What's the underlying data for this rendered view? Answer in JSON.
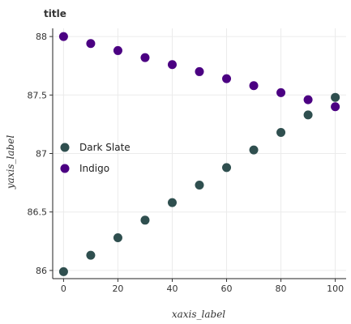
{
  "chart_data": {
    "type": "scatter",
    "title": "title",
    "xlabel": "xaxis_label",
    "ylabel": "yaxis_label",
    "xlim": [
      -4,
      104
    ],
    "ylim": [
      85.93,
      88.07
    ],
    "x_ticks": [
      0,
      20,
      40,
      60,
      80,
      100
    ],
    "y_ticks": [
      86,
      86.5,
      87,
      87.5,
      88
    ],
    "y_tick_labels": [
      "86",
      "86.5",
      "87",
      "87.5",
      "88"
    ],
    "x_tick_labels": [
      "0",
      "20",
      "40",
      "60",
      "80",
      "100"
    ],
    "grid": true,
    "legend_position": "left",
    "series": [
      {
        "name": "Dark Slate",
        "color": "#2f4f4f",
        "x": [
          0,
          10,
          20,
          30,
          40,
          50,
          60,
          70,
          80,
          90,
          100
        ],
        "y": [
          85.99,
          86.13,
          86.28,
          86.43,
          86.58,
          86.73,
          86.88,
          87.03,
          87.18,
          87.33,
          87.48
        ]
      },
      {
        "name": "Indigo",
        "color": "#4b0082",
        "x": [
          0,
          10,
          20,
          30,
          40,
          50,
          60,
          70,
          80,
          90,
          100
        ],
        "y": [
          88.0,
          87.94,
          87.88,
          87.82,
          87.76,
          87.7,
          87.64,
          87.58,
          87.52,
          87.46,
          87.4
        ]
      }
    ]
  }
}
